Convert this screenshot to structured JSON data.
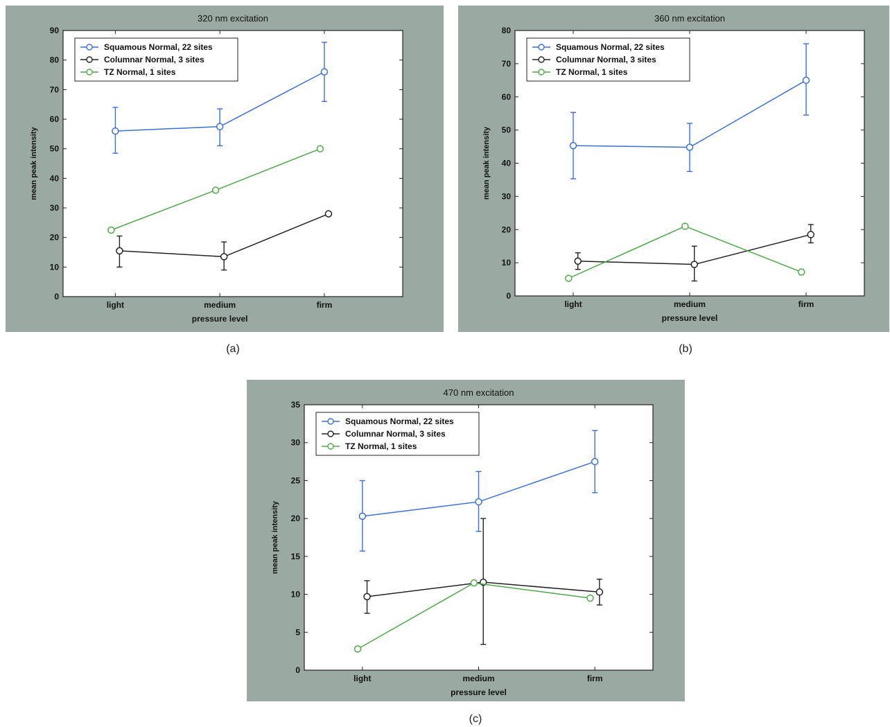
{
  "chart_data": [
    {
      "type": "line",
      "title": "320 nm excitation",
      "xlabel": "pressure level",
      "ylabel": "mean peak intensity",
      "categories": [
        "light",
        "medium",
        "firm"
      ],
      "ylim": [
        0,
        90
      ],
      "yticks": [
        0,
        10,
        20,
        30,
        40,
        50,
        60,
        70,
        80,
        90
      ],
      "legend_position": "top-left",
      "grid": false,
      "series": [
        {
          "name": "Squamous Normal, 22 sites",
          "color": "#3a6fd8",
          "x": [
            1.0,
            2.0,
            3.0
          ],
          "values": [
            56,
            57.5,
            76
          ],
          "err_low": [
            48.5,
            51,
            66
          ],
          "err_high": [
            64,
            63.5,
            86
          ]
        },
        {
          "name": "Columnar Normal, 3 sites",
          "color": "#222222",
          "x": [
            1.04,
            2.04,
            3.04
          ],
          "values": [
            15.5,
            13.5,
            28
          ],
          "err_low": [
            10,
            9,
            27.5
          ],
          "err_high": [
            20.5,
            18.5,
            28.5
          ]
        },
        {
          "name": "TZ Normal, 1 sites",
          "color": "#4fa84a",
          "x": [
            0.96,
            1.96,
            2.96
          ],
          "values": [
            22.5,
            36,
            50
          ],
          "err_low": null,
          "err_high": null
        }
      ],
      "caption": "(a)"
    },
    {
      "type": "line",
      "title": "360 nm excitation",
      "xlabel": "pressure level",
      "ylabel": "mean peak intensity",
      "categories": [
        "light",
        "medium",
        "firm"
      ],
      "ylim": [
        0,
        80
      ],
      "yticks": [
        0,
        10,
        20,
        30,
        40,
        50,
        60,
        70,
        80
      ],
      "legend_position": "top-left",
      "grid": false,
      "series": [
        {
          "name": "Squamous Normal, 22 sites",
          "color": "#3a6fd8",
          "x": [
            1.0,
            2.0,
            3.0
          ],
          "values": [
            45.3,
            44.8,
            65
          ],
          "err_low": [
            35.3,
            37.5,
            54.5
          ],
          "err_high": [
            55.3,
            52,
            76
          ]
        },
        {
          "name": "Columnar Normal, 3 sites",
          "color": "#222222",
          "x": [
            1.04,
            2.04,
            3.04
          ],
          "values": [
            10.5,
            9.5,
            18.5
          ],
          "err_low": [
            8,
            4.5,
            16
          ],
          "err_high": [
            13,
            15,
            21.5
          ]
        },
        {
          "name": "TZ Normal, 1 sites",
          "color": "#4fa84a",
          "x": [
            0.96,
            1.96,
            2.96
          ],
          "values": [
            5.3,
            21,
            7.2
          ],
          "err_low": null,
          "err_high": null
        }
      ],
      "caption": "(b)"
    },
    {
      "type": "line",
      "title": "470 nm excitation",
      "xlabel": "pressure level",
      "ylabel": "mean peak intensity",
      "categories": [
        "light",
        "medium",
        "firm"
      ],
      "ylim": [
        0,
        35
      ],
      "yticks": [
        0,
        5,
        10,
        15,
        20,
        25,
        30,
        35
      ],
      "legend_position": "top-left",
      "grid": false,
      "series": [
        {
          "name": "Squamous Normal, 22 sites",
          "color": "#3a6fd8",
          "x": [
            1.0,
            2.0,
            3.0
          ],
          "values": [
            20.3,
            22.2,
            27.5
          ],
          "err_low": [
            15.7,
            18.3,
            23.4
          ],
          "err_high": [
            25,
            26.2,
            31.6
          ]
        },
        {
          "name": "Columnar Normal, 3 sites",
          "color": "#222222",
          "x": [
            1.04,
            2.04,
            3.04
          ],
          "values": [
            9.7,
            11.6,
            10.3
          ],
          "err_low": [
            7.5,
            3.4,
            8.6
          ],
          "err_high": [
            11.8,
            20,
            12
          ]
        },
        {
          "name": "TZ Normal, 1 sites",
          "color": "#4fa84a",
          "x": [
            0.96,
            1.96,
            2.96
          ],
          "values": [
            2.8,
            11.5,
            9.5
          ],
          "err_low": null,
          "err_high": null
        }
      ],
      "caption": "(c)"
    }
  ],
  "style": {
    "panel_background": "#9aaaa3",
    "axes_background": "#ffffff",
    "axis_color": "#222222"
  }
}
